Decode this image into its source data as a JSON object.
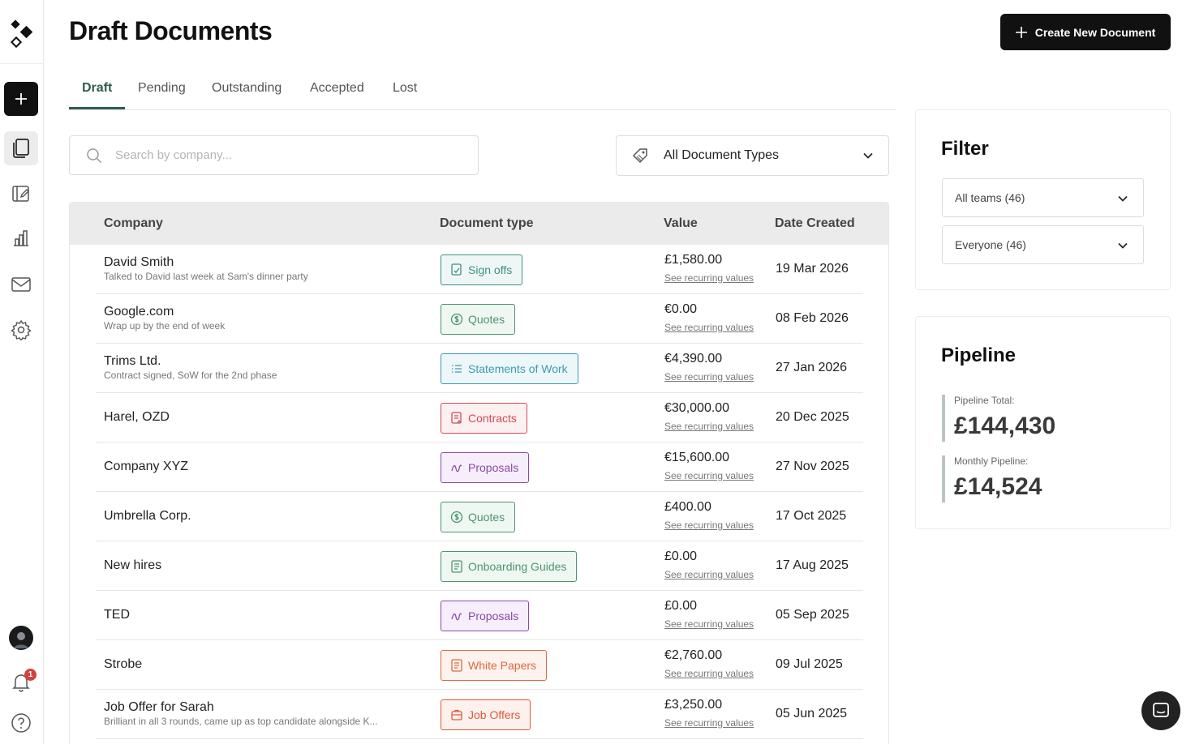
{
  "page": {
    "title": "Draft Documents"
  },
  "create_button": {
    "label": "Create New Document"
  },
  "tabs": [
    "Draft",
    "Pending",
    "Outstanding",
    "Accepted",
    "Lost"
  ],
  "search": {
    "placeholder": "Search by company..."
  },
  "doctype_filter": {
    "value": "All Document Types"
  },
  "table": {
    "headers": {
      "company": "Company",
      "doctype": "Document type",
      "value": "Value",
      "date": "Date Created"
    },
    "recurring_label": "See recurring values",
    "rows": [
      {
        "company": "David Smith",
        "note": "Talked to David last week at Sam's dinner party",
        "doctype": "Sign offs",
        "value": "£1,580.00",
        "date": "19 Mar 2026"
      },
      {
        "company": "Google.com",
        "note": "Wrap up by the end of week",
        "doctype": "Quotes",
        "value": "€0.00",
        "date": "08 Feb 2026"
      },
      {
        "company": "Trims Ltd.",
        "note": "Contract signed, SoW for the 2nd phase",
        "doctype": "Statements of Work",
        "value": "€4,390.00",
        "date": "27 Jan 2026"
      },
      {
        "company": "Harel, OZD",
        "note": "",
        "doctype": "Contracts",
        "value": "€30,000.00",
        "date": "20 Dec 2025"
      },
      {
        "company": "Company XYZ",
        "note": "",
        "doctype": "Proposals",
        "value": "€15,600.00",
        "date": "27 Nov 2025"
      },
      {
        "company": "Umbrella Corp.",
        "note": "",
        "doctype": "Quotes",
        "value": "£400.00",
        "date": "17 Oct 2025"
      },
      {
        "company": "New hires",
        "note": "",
        "doctype": "Onboarding Guides",
        "value": "£0.00",
        "date": "17 Aug 2025"
      },
      {
        "company": "TED",
        "note": "",
        "doctype": "Proposals",
        "value": "£0.00",
        "date": "05 Sep 2025"
      },
      {
        "company": "Strobe",
        "note": "",
        "doctype": "White Papers",
        "value": "€2,760.00",
        "date": "09 Jul 2025"
      },
      {
        "company": "Job Offer for Sarah",
        "note": "Brilliant in all 3 rounds, came up as top candidate alongside K...",
        "doctype": "Job Offers",
        "value": "£3,250.00",
        "date": "05 Jun 2025"
      }
    ]
  },
  "filter": {
    "title": "Filter",
    "teams": "All teams (46)",
    "people": "Everyone (46)"
  },
  "pipeline": {
    "title": "Pipeline",
    "total_label": "Pipeline Total:",
    "total_value": "£144,430",
    "monthly_label": "Monthly Pipeline:",
    "monthly_value": "£14,524"
  },
  "notifications": {
    "count": "1"
  },
  "icons": {
    "sidebar": [
      "logo-icon",
      "plus-icon",
      "documents-icon",
      "edit-doc-icon",
      "chart-icon",
      "mail-icon",
      "gear-icon",
      "avatar",
      "bell-icon",
      "help-icon"
    ],
    "doctype_colors": {
      "Sign offs": "#3f8f86",
      "Quotes": "#4d9470",
      "Statements of Work": "#3d9ab0",
      "Contracts": "#cf4c55",
      "Proposals": "#8a4aa6",
      "Onboarding Guides": "#4d9470",
      "White Papers": "#dc6a3c",
      "Job Offers": "#dc5a3c"
    }
  }
}
